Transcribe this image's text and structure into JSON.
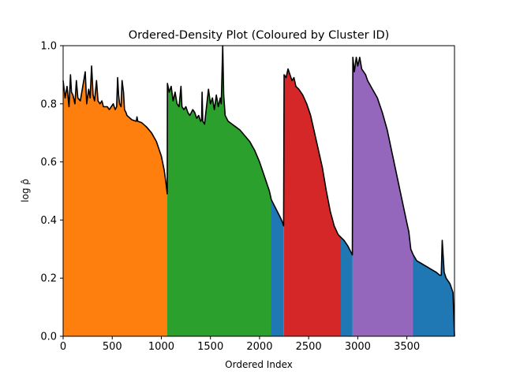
{
  "chart_data": {
    "type": "area",
    "title": "Ordered-Density Plot (Coloured by Cluster ID)",
    "xlabel": "Ordered Index",
    "ylabel": "log ρ̂",
    "xlim": [
      0,
      3985
    ],
    "ylim": [
      0,
      1.0
    ],
    "x_ticks": [
      0,
      500,
      1000,
      1500,
      2000,
      2500,
      3000,
      3500
    ],
    "x_tick_labels": [
      "0",
      "500",
      "1000",
      "1500",
      "2000",
      "2500",
      "3000",
      "3500"
    ],
    "y_ticks": [
      0.0,
      0.2,
      0.4,
      0.6,
      0.8,
      1.0
    ],
    "y_tick_labels": [
      "0.0",
      "0.2",
      "0.4",
      "0.6",
      "0.8",
      "1.0"
    ],
    "line_color": "#000000",
    "curve": [
      [
        0,
        0.88
      ],
      [
        20,
        0.82
      ],
      [
        40,
        0.86
      ],
      [
        60,
        0.79
      ],
      [
        75,
        0.9
      ],
      [
        85,
        0.84
      ],
      [
        100,
        0.83
      ],
      [
        120,
        0.8
      ],
      [
        135,
        0.88
      ],
      [
        150,
        0.82
      ],
      [
        175,
        0.81
      ],
      [
        200,
        0.86
      ],
      [
        225,
        0.91
      ],
      [
        240,
        0.8
      ],
      [
        260,
        0.85
      ],
      [
        275,
        0.82
      ],
      [
        290,
        0.93
      ],
      [
        305,
        0.83
      ],
      [
        320,
        0.81
      ],
      [
        340,
        0.88
      ],
      [
        355,
        0.81
      ],
      [
        375,
        0.8
      ],
      [
        395,
        0.81
      ],
      [
        410,
        0.79
      ],
      [
        430,
        0.79
      ],
      [
        450,
        0.79
      ],
      [
        470,
        0.78
      ],
      [
        490,
        0.79
      ],
      [
        510,
        0.8
      ],
      [
        530,
        0.78
      ],
      [
        545,
        0.79
      ],
      [
        555,
        0.89
      ],
      [
        565,
        0.83
      ],
      [
        575,
        0.8
      ],
      [
        590,
        0.79
      ],
      [
        600,
        0.88
      ],
      [
        615,
        0.84
      ],
      [
        625,
        0.78
      ],
      [
        640,
        0.77
      ],
      [
        650,
        0.76
      ],
      [
        700,
        0.745
      ],
      [
        745,
        0.74
      ],
      [
        752,
        0.755
      ],
      [
        760,
        0.74
      ],
      [
        800,
        0.735
      ],
      [
        850,
        0.72
      ],
      [
        900,
        0.7
      ],
      [
        950,
        0.67
      ],
      [
        1000,
        0.62
      ],
      [
        1030,
        0.57
      ],
      [
        1050,
        0.52
      ],
      [
        1060,
        0.49
      ],
      [
        1062,
        0.87
      ],
      [
        1080,
        0.84
      ],
      [
        1100,
        0.86
      ],
      [
        1120,
        0.81
      ],
      [
        1140,
        0.84
      ],
      [
        1160,
        0.8
      ],
      [
        1180,
        0.79
      ],
      [
        1200,
        0.86
      ],
      [
        1210,
        0.79
      ],
      [
        1230,
        0.78
      ],
      [
        1250,
        0.79
      ],
      [
        1270,
        0.77
      ],
      [
        1290,
        0.76
      ],
      [
        1320,
        0.78
      ],
      [
        1340,
        0.77
      ],
      [
        1360,
        0.75
      ],
      [
        1380,
        0.76
      ],
      [
        1400,
        0.74
      ],
      [
        1410,
        0.745
      ],
      [
        1415,
        0.84
      ],
      [
        1422,
        0.74
      ],
      [
        1440,
        0.73
      ],
      [
        1460,
        0.79
      ],
      [
        1480,
        0.85
      ],
      [
        1500,
        0.8
      ],
      [
        1520,
        0.82
      ],
      [
        1540,
        0.78
      ],
      [
        1560,
        0.83
      ],
      [
        1580,
        0.79
      ],
      [
        1600,
        0.82
      ],
      [
        1610,
        0.8
      ],
      [
        1625,
        1.0
      ],
      [
        1635,
        0.83
      ],
      [
        1650,
        0.76
      ],
      [
        1680,
        0.74
      ],
      [
        1720,
        0.73
      ],
      [
        1760,
        0.72
      ],
      [
        1800,
        0.71
      ],
      [
        1850,
        0.69
      ],
      [
        1900,
        0.67
      ],
      [
        1950,
        0.64
      ],
      [
        2000,
        0.6
      ],
      [
        2050,
        0.55
      ],
      [
        2100,
        0.5
      ],
      [
        2120,
        0.47
      ],
      [
        2150,
        0.45
      ],
      [
        2180,
        0.43
      ],
      [
        2210,
        0.41
      ],
      [
        2230,
        0.395
      ],
      [
        2245,
        0.38
      ],
      [
        2250,
        0.9
      ],
      [
        2270,
        0.89
      ],
      [
        2290,
        0.92
      ],
      [
        2310,
        0.9
      ],
      [
        2330,
        0.88
      ],
      [
        2350,
        0.89
      ],
      [
        2370,
        0.86
      ],
      [
        2400,
        0.85
      ],
      [
        2440,
        0.83
      ],
      [
        2480,
        0.8
      ],
      [
        2520,
        0.76
      ],
      [
        2560,
        0.7
      ],
      [
        2600,
        0.64
      ],
      [
        2640,
        0.58
      ],
      [
        2680,
        0.5
      ],
      [
        2720,
        0.43
      ],
      [
        2760,
        0.38
      ],
      [
        2800,
        0.35
      ],
      [
        2830,
        0.34
      ],
      [
        2860,
        0.33
      ],
      [
        2900,
        0.31
      ],
      [
        2945,
        0.28
      ],
      [
        2950,
        0.96
      ],
      [
        2965,
        0.91
      ],
      [
        2985,
        0.96
      ],
      [
        3000,
        0.93
      ],
      [
        3020,
        0.96
      ],
      [
        3040,
        0.92
      ],
      [
        3060,
        0.91
      ],
      [
        3080,
        0.9
      ],
      [
        3100,
        0.88
      ],
      [
        3150,
        0.85
      ],
      [
        3200,
        0.82
      ],
      [
        3250,
        0.77
      ],
      [
        3300,
        0.71
      ],
      [
        3350,
        0.63
      ],
      [
        3400,
        0.55
      ],
      [
        3450,
        0.47
      ],
      [
        3500,
        0.39
      ],
      [
        3520,
        0.36
      ],
      [
        3540,
        0.3
      ],
      [
        3565,
        0.28
      ],
      [
        3600,
        0.26
      ],
      [
        3650,
        0.25
      ],
      [
        3700,
        0.24
      ],
      [
        3750,
        0.23
      ],
      [
        3800,
        0.22
      ],
      [
        3835,
        0.21
      ],
      [
        3850,
        0.21
      ],
      [
        3860,
        0.33
      ],
      [
        3880,
        0.22
      ],
      [
        3900,
        0.2
      ],
      [
        3940,
        0.18
      ],
      [
        3970,
        0.15
      ],
      [
        3985,
        0.0
      ]
    ],
    "segments": [
      {
        "cluster": "orange",
        "color": "#ff7f0e",
        "x_start": 0,
        "x_end": 1060
      },
      {
        "cluster": "green",
        "color": "#2ca02c",
        "x_start": 1062,
        "x_end": 2120
      },
      {
        "cluster": "blue",
        "color": "#1f77b4",
        "x_start": 2120,
        "x_end": 2245
      },
      {
        "cluster": "red",
        "color": "#d62728",
        "x_start": 2250,
        "x_end": 2830
      },
      {
        "cluster": "blue",
        "color": "#1f77b4",
        "x_start": 2830,
        "x_end": 2945
      },
      {
        "cluster": "purple",
        "color": "#9467bd",
        "x_start": 2950,
        "x_end": 3565
      },
      {
        "cluster": "blue",
        "color": "#1f77b4",
        "x_start": 3565,
        "x_end": 3985
      }
    ]
  }
}
